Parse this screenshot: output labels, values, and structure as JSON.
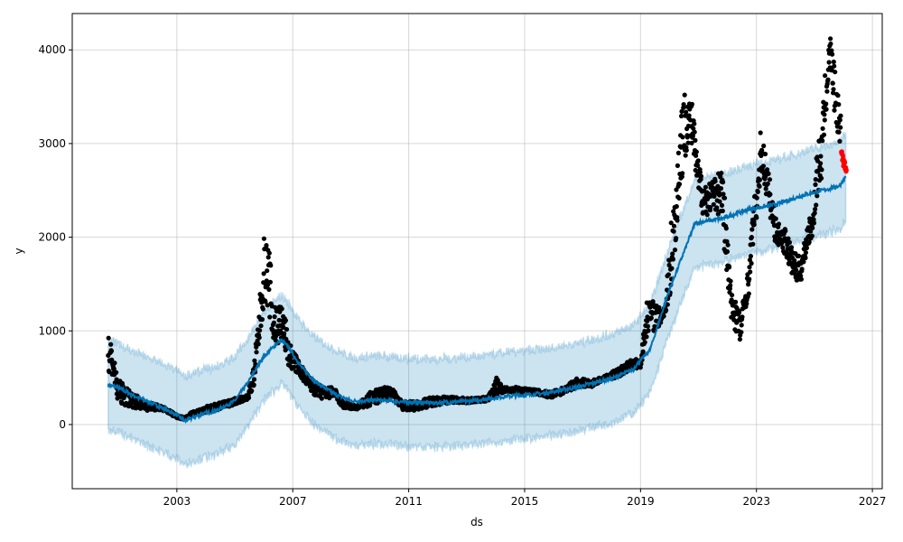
{
  "chart_data": {
    "type": "scatter",
    "title": "",
    "xlabel": "ds",
    "ylabel": "y",
    "xlim": [
      1999.39,
      2027.34
    ],
    "ylim": [
      -685,
      4388
    ],
    "grid": true,
    "x_ticks": [
      2003,
      2007,
      2011,
      2015,
      2019,
      2023,
      2027
    ],
    "x_tick_labels": [
      "2003",
      "2007",
      "2011",
      "2015",
      "2019",
      "2023",
      "2027"
    ],
    "y_ticks": [
      0,
      1000,
      2000,
      3000,
      4000
    ],
    "y_tick_labels": [
      "0",
      "1000",
      "2000",
      "3000",
      "4000"
    ],
    "colors": {
      "actual": "#000000",
      "test": "#ff0000",
      "yhat": "#0072B2",
      "band": "#0072B2"
    },
    "band_halfwidth": 470,
    "actual_ranges": [
      [
        2000.63,
        500,
        1000
      ],
      [
        2000.79,
        500,
        800
      ],
      [
        2000.94,
        250,
        500
      ],
      [
        2001.25,
        200,
        400
      ],
      [
        2001.88,
        150,
        250
      ],
      [
        2002.5,
        150,
        200
      ],
      [
        2003.0,
        70,
        110
      ],
      [
        2003.28,
        50,
        80
      ],
      [
        2003.59,
        100,
        150
      ],
      [
        2004.06,
        120,
        200
      ],
      [
        2004.68,
        180,
        250
      ],
      [
        2005.15,
        230,
        300
      ],
      [
        2005.46,
        270,
        320
      ],
      [
        2005.68,
        400,
        700
      ],
      [
        2005.87,
        900,
        1400
      ],
      [
        2006.02,
        1300,
        2050
      ],
      [
        2006.18,
        1200,
        1900
      ],
      [
        2006.33,
        700,
        1400
      ],
      [
        2006.55,
        900,
        1300
      ],
      [
        2006.7,
        800,
        1250
      ],
      [
        2006.86,
        600,
        900
      ],
      [
        2007.17,
        550,
        700
      ],
      [
        2007.48,
        400,
        550
      ],
      [
        2007.79,
        300,
        450
      ],
      [
        2008.1,
        250,
        400
      ],
      [
        2008.42,
        300,
        400
      ],
      [
        2008.73,
        170,
        250
      ],
      [
        2009.2,
        160,
        200
      ],
      [
        2009.67,
        180,
        350
      ],
      [
        2010.13,
        250,
        400
      ],
      [
        2010.44,
        300,
        400
      ],
      [
        2010.76,
        150,
        250
      ],
      [
        2011.22,
        150,
        250
      ],
      [
        2011.85,
        200,
        300
      ],
      [
        2012.47,
        230,
        300
      ],
      [
        2013.1,
        230,
        280
      ],
      [
        2013.72,
        250,
        300
      ],
      [
        2014.03,
        300,
        500
      ],
      [
        2014.34,
        350,
        400
      ],
      [
        2014.8,
        330,
        400
      ],
      [
        2015.27,
        330,
        380
      ],
      [
        2015.9,
        280,
        350
      ],
      [
        2016.36,
        330,
        400
      ],
      [
        2016.83,
        400,
        500
      ],
      [
        2017.3,
        400,
        470
      ],
      [
        2017.77,
        480,
        520
      ],
      [
        2018.23,
        500,
        600
      ],
      [
        2018.7,
        600,
        700
      ],
      [
        2019.0,
        600,
        700
      ],
      [
        2019.25,
        1000,
        1400
      ],
      [
        2019.63,
        1000,
        1250
      ],
      [
        2019.88,
        1200,
        1300
      ],
      [
        2020.0,
        1300,
        2100
      ],
      [
        2020.19,
        1800,
        2500
      ],
      [
        2020.4,
        2500,
        3550
      ],
      [
        2020.62,
        3000,
        3600
      ],
      [
        2020.81,
        2900,
        3400
      ],
      [
        2020.94,
        2500,
        2900
      ],
      [
        2021.19,
        2200,
        2600
      ],
      [
        2021.5,
        2300,
        2600
      ],
      [
        2021.81,
        2200,
        2800
      ],
      [
        2021.97,
        1500,
        2200
      ],
      [
        2022.12,
        1100,
        1500
      ],
      [
        2022.28,
        1000,
        1400
      ],
      [
        2022.44,
        830,
        1200
      ],
      [
        2022.59,
        1200,
        1400
      ],
      [
        2022.75,
        1400,
        1750
      ],
      [
        2022.9,
        2000,
        2400
      ],
      [
        2023.06,
        2300,
        2600
      ],
      [
        2023.15,
        2700,
        3200
      ],
      [
        2023.37,
        2400,
        2800
      ],
      [
        2023.53,
        2100,
        2500
      ],
      [
        2023.68,
        1900,
        2200
      ],
      [
        2023.84,
        1900,
        2100
      ],
      [
        2024.0,
        1800,
        2100
      ],
      [
        2024.21,
        1600,
        1900
      ],
      [
        2024.4,
        1500,
        1800
      ],
      [
        2024.56,
        1550,
        1800
      ],
      [
        2024.78,
        1900,
        2200
      ],
      [
        2024.93,
        2000,
        2200
      ],
      [
        2025.09,
        2400,
        3000
      ],
      [
        2025.24,
        2600,
        3100
      ],
      [
        2025.4,
        3300,
        3900
      ],
      [
        2025.55,
        3800,
        4150
      ],
      [
        2025.7,
        3300,
        3800
      ],
      [
        2025.86,
        3000,
        3400
      ]
    ],
    "test_ranges": [
      [
        2025.93,
        2850,
        2980
      ],
      [
        2026.0,
        2750,
        2900
      ],
      [
        2026.05,
        2700,
        2800
      ]
    ],
    "yhat": [
      [
        2000.63,
        420
      ],
      [
        2000.94,
        400
      ],
      [
        2001.57,
        300
      ],
      [
        2002.35,
        200
      ],
      [
        2003.0,
        100
      ],
      [
        2003.28,
        40
      ],
      [
        2003.75,
        100
      ],
      [
        2004.37,
        150
      ],
      [
        2004.99,
        250
      ],
      [
        2005.46,
        450
      ],
      [
        2005.93,
        700
      ],
      [
        2006.4,
        850
      ],
      [
        2006.61,
        900
      ],
      [
        2006.86,
        820
      ],
      [
        2007.33,
        600
      ],
      [
        2007.8,
        450
      ],
      [
        2008.42,
        330
      ],
      [
        2009.04,
        250
      ],
      [
        2009.98,
        260
      ],
      [
        2010.91,
        240
      ],
      [
        2011.85,
        230
      ],
      [
        2013.09,
        250
      ],
      [
        2014.34,
        300
      ],
      [
        2015.59,
        330
      ],
      [
        2016.83,
        400
      ],
      [
        2018.08,
        500
      ],
      [
        2018.7,
        580
      ],
      [
        2019.33,
        800
      ],
      [
        2019.95,
        1400
      ],
      [
        2020.57,
        1900
      ],
      [
        2020.88,
        2150
      ],
      [
        2021.82,
        2200
      ],
      [
        2022.75,
        2300
      ],
      [
        2023.69,
        2350
      ],
      [
        2024.62,
        2450
      ],
      [
        2025.55,
        2520
      ],
      [
        2025.87,
        2550
      ],
      [
        2026.08,
        2650
      ]
    ]
  }
}
